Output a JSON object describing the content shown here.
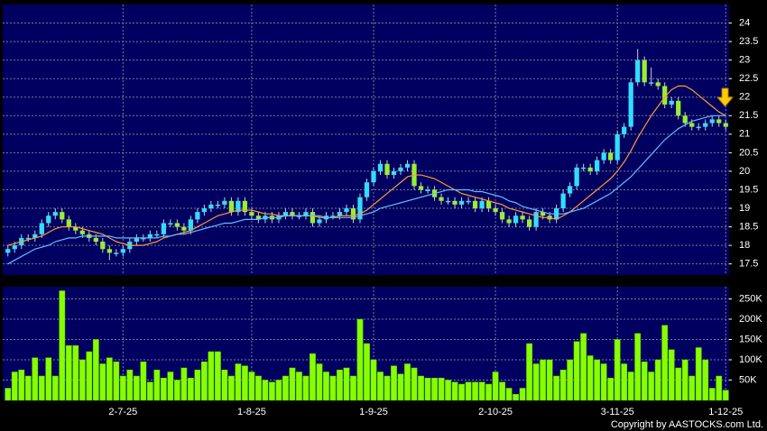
{
  "chart_data": [
    {
      "type": "candlestick",
      "open": [
        17.8,
        17.9,
        18.0,
        18.2,
        18.2,
        18.3,
        18.6,
        18.8,
        18.9,
        18.7,
        18.5,
        18.4,
        18.3,
        18.2,
        18.1,
        17.9,
        17.8,
        17.8,
        17.9,
        18.1,
        18.2,
        18.2,
        18.3,
        18.3,
        18.6,
        18.6,
        18.5,
        18.4,
        18.7,
        18.9,
        19.0,
        19.1,
        19.1,
        19.2,
        18.9,
        19.2,
        18.9,
        18.8,
        18.7,
        18.8,
        18.7,
        18.8,
        18.9,
        18.8,
        18.8,
        18.9,
        18.6,
        18.7,
        18.8,
        18.8,
        18.9,
        19.0,
        18.7,
        19.3,
        19.7,
        20.0,
        20.2,
        19.9,
        20.0,
        20.1,
        20.2,
        19.6,
        19.5,
        19.5,
        19.3,
        19.2,
        19.2,
        19.1,
        19.2,
        19.2,
        19.0,
        19.2,
        19.0,
        18.9,
        18.7,
        18.6,
        18.8,
        18.7,
        18.5,
        18.9,
        18.8,
        18.7,
        19.0,
        19.4,
        19.6,
        20.1,
        20.1,
        20.0,
        20.3,
        20.5,
        20.3,
        21.0,
        21.2,
        22.4,
        23.0,
        22.4,
        22.4,
        22.3,
        21.8,
        21.9,
        21.5,
        21.3,
        21.2,
        21.2,
        21.3,
        21.4,
        21.3
      ],
      "high": [
        18.0,
        18.1,
        18.3,
        18.3,
        18.4,
        18.7,
        18.9,
        19.0,
        19.0,
        18.8,
        18.6,
        18.5,
        18.4,
        18.3,
        18.2,
        18.0,
        17.9,
        18.0,
        18.2,
        18.3,
        18.3,
        18.4,
        18.4,
        18.7,
        18.7,
        18.7,
        18.6,
        18.8,
        19.0,
        19.1,
        19.2,
        19.2,
        19.3,
        19.3,
        19.3,
        19.3,
        19.0,
        18.9,
        18.9,
        18.9,
        18.9,
        19.0,
        19.0,
        18.9,
        19.0,
        19.0,
        18.8,
        18.9,
        18.9,
        19.0,
        19.1,
        19.1,
        19.4,
        19.8,
        20.1,
        20.3,
        20.3,
        20.1,
        20.2,
        20.3,
        20.3,
        19.7,
        19.6,
        19.6,
        19.4,
        19.3,
        19.3,
        19.3,
        19.3,
        19.3,
        19.3,
        19.3,
        19.1,
        19.0,
        18.8,
        18.9,
        18.9,
        18.8,
        19.0,
        19.0,
        18.9,
        19.1,
        19.5,
        19.7,
        20.2,
        20.2,
        20.2,
        20.4,
        20.6,
        20.6,
        21.1,
        21.3,
        22.5,
        23.3,
        23.1,
        22.8,
        22.5,
        22.4,
        22.0,
        22.0,
        21.6,
        21.4,
        21.3,
        21.4,
        21.5,
        21.5,
        21.4
      ],
      "low": [
        17.7,
        17.8,
        17.9,
        18.1,
        18.1,
        18.2,
        18.5,
        18.7,
        18.6,
        18.4,
        18.3,
        18.2,
        18.1,
        18.0,
        17.8,
        17.6,
        17.7,
        17.7,
        17.8,
        18.0,
        18.1,
        18.1,
        18.2,
        18.2,
        18.5,
        18.4,
        18.3,
        18.3,
        18.6,
        18.8,
        18.9,
        19.0,
        19.0,
        18.8,
        18.8,
        18.8,
        18.7,
        18.6,
        18.6,
        18.6,
        18.6,
        18.7,
        18.7,
        18.7,
        18.7,
        18.5,
        18.5,
        18.6,
        18.7,
        18.7,
        18.8,
        18.6,
        18.6,
        19.2,
        19.6,
        19.9,
        19.8,
        19.8,
        19.9,
        20.0,
        19.5,
        19.4,
        19.4,
        19.2,
        19.1,
        19.1,
        19.0,
        19.0,
        19.1,
        18.9,
        18.9,
        18.9,
        18.8,
        18.6,
        18.5,
        18.5,
        18.6,
        18.4,
        18.4,
        18.7,
        18.6,
        18.6,
        18.9,
        19.3,
        19.5,
        20.0,
        19.9,
        19.9,
        20.2,
        20.2,
        20.2,
        20.9,
        21.1,
        22.3,
        22.3,
        22.3,
        22.2,
        21.7,
        21.7,
        21.4,
        21.2,
        21.1,
        21.1,
        21.1,
        21.2,
        21.2,
        21.1
      ],
      "close": [
        17.9,
        18.0,
        18.2,
        18.2,
        18.3,
        18.6,
        18.8,
        18.9,
        18.7,
        18.5,
        18.4,
        18.3,
        18.2,
        18.1,
        17.9,
        17.8,
        17.8,
        17.9,
        18.1,
        18.2,
        18.2,
        18.3,
        18.3,
        18.6,
        18.6,
        18.5,
        18.4,
        18.7,
        18.9,
        19.0,
        19.1,
        19.1,
        19.2,
        18.9,
        19.2,
        18.9,
        18.8,
        18.7,
        18.8,
        18.7,
        18.8,
        18.9,
        18.8,
        18.8,
        18.9,
        18.6,
        18.7,
        18.8,
        18.8,
        18.9,
        19.0,
        18.7,
        19.3,
        19.7,
        20.0,
        20.2,
        19.9,
        20.0,
        20.1,
        20.2,
        19.6,
        19.5,
        19.5,
        19.3,
        19.2,
        19.2,
        19.1,
        19.2,
        19.2,
        19.0,
        19.2,
        19.0,
        18.9,
        18.7,
        18.6,
        18.8,
        18.7,
        18.5,
        18.9,
        18.8,
        18.7,
        19.0,
        19.4,
        19.6,
        20.1,
        20.1,
        20.0,
        20.3,
        20.5,
        20.3,
        21.0,
        21.2,
        22.4,
        23.0,
        22.4,
        22.4,
        22.3,
        21.8,
        21.9,
        21.5,
        21.3,
        21.2,
        21.2,
        21.3,
        21.4,
        21.3,
        21.2
      ],
      "up_color": "#33ddff",
      "down_color": "#99ee33",
      "lines": [
        {
          "color": "#ff9933",
          "values": [
            18.0,
            18.05,
            18.1,
            18.15,
            18.2,
            18.25,
            18.35,
            18.45,
            18.5,
            18.5,
            18.5,
            18.45,
            18.4,
            18.35,
            18.3,
            18.2,
            18.1,
            18.05,
            18.0,
            18.0,
            18.0,
            18.05,
            18.1,
            18.2,
            18.25,
            18.3,
            18.35,
            18.4,
            18.5,
            18.6,
            18.7,
            18.8,
            18.85,
            18.9,
            18.95,
            18.95,
            18.95,
            18.9,
            18.85,
            18.85,
            18.8,
            18.8,
            18.8,
            18.8,
            18.8,
            18.8,
            18.75,
            18.75,
            18.75,
            18.8,
            18.8,
            18.8,
            18.85,
            18.95,
            19.1,
            19.25,
            19.4,
            19.55,
            19.7,
            19.85,
            19.9,
            19.9,
            19.85,
            19.8,
            19.7,
            19.6,
            19.5,
            19.4,
            19.35,
            19.3,
            19.25,
            19.2,
            19.15,
            19.1,
            19.0,
            18.95,
            18.9,
            18.85,
            18.8,
            18.75,
            18.75,
            18.7,
            18.8,
            18.9,
            19.05,
            19.2,
            19.35,
            19.5,
            19.65,
            19.8,
            20.0,
            20.25,
            20.55,
            20.9,
            21.2,
            21.5,
            21.75,
            22.0,
            22.2,
            22.3,
            22.3,
            22.2,
            22.05,
            21.9,
            21.75,
            21.6,
            21.5
          ]
        },
        {
          "color": "#66bbff",
          "values": [
            17.5,
            17.6,
            17.7,
            17.8,
            17.9,
            17.95,
            18.0,
            18.1,
            18.15,
            18.2,
            18.2,
            18.25,
            18.25,
            18.25,
            18.25,
            18.25,
            18.2,
            18.2,
            18.2,
            18.2,
            18.2,
            18.2,
            18.2,
            18.25,
            18.25,
            18.3,
            18.3,
            18.35,
            18.4,
            18.45,
            18.5,
            18.55,
            18.6,
            18.6,
            18.65,
            18.7,
            18.7,
            18.7,
            18.75,
            18.75,
            18.75,
            18.8,
            18.8,
            18.8,
            18.8,
            18.8,
            18.8,
            18.75,
            18.75,
            18.75,
            18.75,
            18.75,
            18.8,
            18.85,
            18.9,
            19.0,
            19.05,
            19.1,
            19.15,
            19.2,
            19.25,
            19.3,
            19.35,
            19.4,
            19.45,
            19.5,
            19.5,
            19.5,
            19.5,
            19.45,
            19.45,
            19.4,
            19.35,
            19.3,
            19.2,
            19.15,
            19.05,
            19.0,
            18.95,
            18.9,
            18.85,
            18.85,
            18.85,
            18.9,
            18.95,
            19.0,
            19.1,
            19.2,
            19.3,
            19.4,
            19.55,
            19.7,
            19.85,
            20.05,
            20.25,
            20.45,
            20.65,
            20.85,
            21.0,
            21.15,
            21.25,
            21.35,
            21.4,
            21.45,
            21.5,
            21.5,
            21.5
          ]
        }
      ],
      "ylim": [
        17.2,
        24.5
      ],
      "yticks": [
        17.5,
        18,
        18.5,
        19,
        19.5,
        20,
        20.5,
        21,
        21.5,
        22,
        22.5,
        23,
        23.5,
        24
      ],
      "grid": true
    },
    {
      "type": "bar",
      "categories": [
        null,
        null,
        null,
        null,
        null,
        null,
        null,
        null,
        null,
        null,
        null,
        null,
        null,
        null,
        null,
        null,
        null,
        "2-7-25",
        null,
        null,
        null,
        null,
        null,
        null,
        null,
        null,
        null,
        null,
        null,
        null,
        null,
        null,
        null,
        null,
        null,
        null,
        "1-8-25",
        null,
        null,
        null,
        null,
        null,
        null,
        null,
        null,
        null,
        null,
        null,
        null,
        null,
        null,
        null,
        null,
        null,
        "1-9-25",
        null,
        null,
        null,
        null,
        null,
        null,
        null,
        null,
        null,
        null,
        null,
        null,
        null,
        null,
        null,
        null,
        null,
        "2-10-25",
        null,
        null,
        null,
        null,
        null,
        null,
        null,
        null,
        null,
        null,
        null,
        null,
        null,
        null,
        null,
        null,
        null,
        "3-11-25",
        null,
        null,
        null,
        null,
        null,
        null,
        null,
        null,
        null,
        null,
        null,
        null,
        null,
        null,
        null,
        "1-12-25"
      ],
      "values": [
        30000,
        70000,
        75000,
        60000,
        105000,
        60000,
        105000,
        60000,
        270000,
        135000,
        135000,
        100000,
        120000,
        150000,
        90000,
        105000,
        95000,
        60000,
        75000,
        60000,
        95000,
        45000,
        75000,
        55000,
        70000,
        50000,
        80000,
        55000,
        75000,
        95000,
        120000,
        120000,
        75000,
        60000,
        90000,
        85000,
        70000,
        60000,
        50000,
        45000,
        50000,
        60000,
        80000,
        70000,
        60000,
        115000,
        90000,
        70000,
        60000,
        75000,
        80000,
        60000,
        200000,
        140000,
        100000,
        70000,
        60000,
        85000,
        65000,
        90000,
        80000,
        60000,
        55000,
        55000,
        55000,
        50000,
        45000,
        40000,
        45000,
        45000,
        45000,
        40000,
        70000,
        45000,
        30000,
        15000,
        30000,
        140000,
        90000,
        100000,
        100000,
        60000,
        75000,
        100000,
        145000,
        165000,
        110000,
        100000,
        90000,
        55000,
        150000,
        90000,
        70000,
        165000,
        95000,
        70000,
        100000,
        185000,
        125000,
        80000,
        100000,
        60000,
        130000,
        100000,
        30000,
        60000,
        25000
      ],
      "color": "#88ff00",
      "ylim": [
        0,
        280000
      ],
      "yticks": [
        {
          "value": 50000,
          "label": "50K"
        },
        {
          "value": 100000,
          "label": "100K"
        },
        {
          "value": 150000,
          "label": "150K"
        },
        {
          "value": 200000,
          "label": "200K"
        },
        {
          "value": 250000,
          "label": "250K"
        }
      ],
      "grid": true,
      "source": "Copyright by AASTOCKS.com Ltd."
    }
  ]
}
